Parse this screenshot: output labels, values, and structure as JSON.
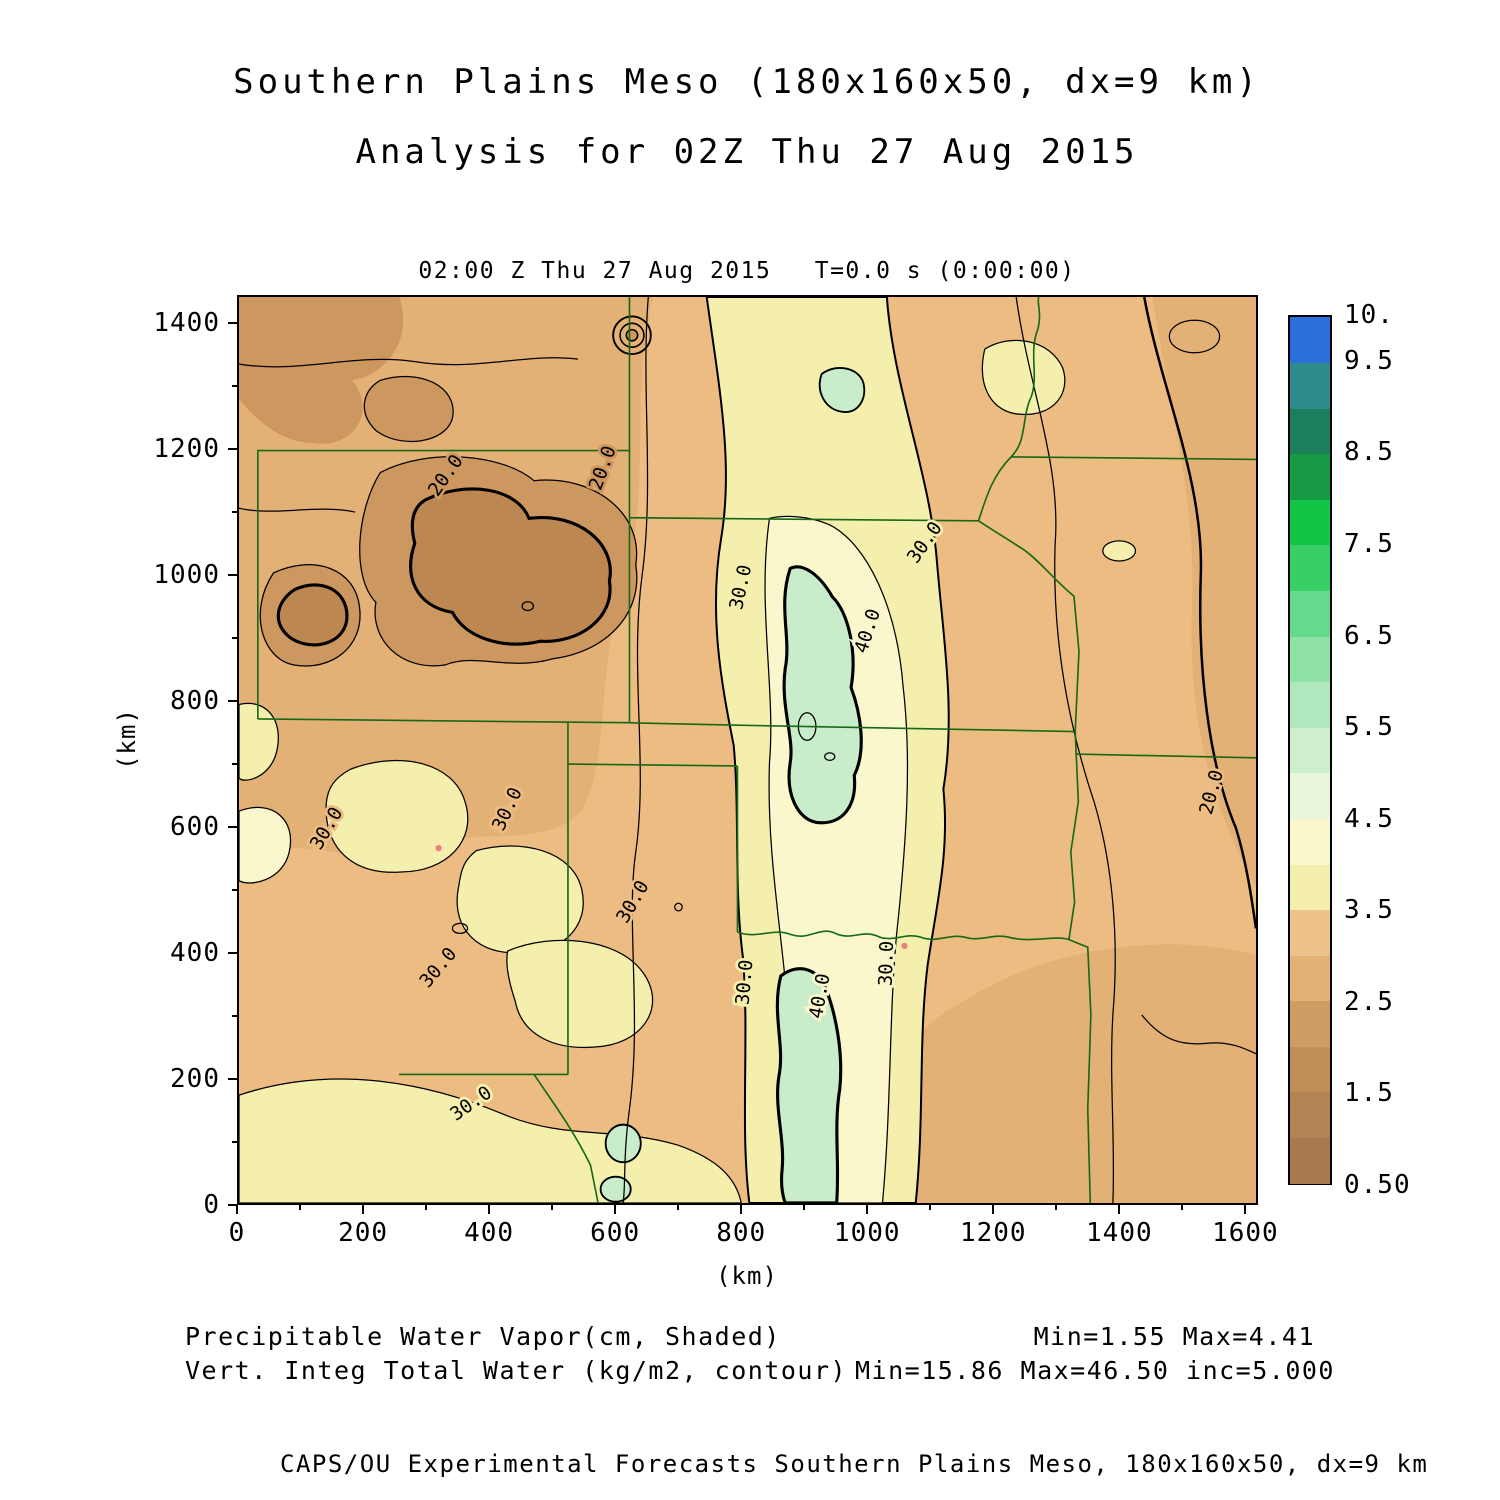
{
  "title": {
    "line1": "Southern Plains Meso (180x160x50, dx=9 km)",
    "line2": "Analysis for 02Z Thu 27 Aug 2015"
  },
  "plot_header": {
    "valid_time": "02:00 Z Thu 27 Aug 2015",
    "forecast_time": "T=0.0 s (0:00:00)"
  },
  "axes": {
    "x_label": "(km)",
    "y_label": "(km)"
  },
  "annotations": {
    "shaded_line": "Precipitable Water Vapor(cm, Shaded)",
    "contour_line": "Vert. Integ Total Water (kg/m2, contour)",
    "shaded_stats": "Min=1.55 Max=4.41",
    "contour_stats": "Min=15.86 Max=46.50 inc=5.000",
    "credit": "CAPS/OU Experimental Forecasts  Southern Plains Meso, 180x160x50, dx=9 km"
  },
  "colors": {
    "state_border": "#186818",
    "contour": "#000000",
    "shade_tan": "#ecbc82",
    "shade_deep_tan": "#e3b175",
    "shade_brown": "#cd9760",
    "shade_dark_brown": "#bd8752",
    "shade_yellow": "#f5efae",
    "shade_cream": "#faf7cd",
    "shade_mint": "#c9ecca"
  },
  "chart_data": {
    "type": "heatmap",
    "title": "Southern Plains Meso (180x160x50, dx=9 km) Analysis for 02Z Thu 27 Aug 2015",
    "subtitle": "02:00 Z Thu 27 Aug 2015  T=0.0 s (0:00:00)",
    "xlabel": "(km)",
    "ylabel": "(km)",
    "xlim": [
      0,
      1620
    ],
    "ylim": [
      0,
      1445
    ],
    "grid": false,
    "legend_position": "right-colorbar",
    "xticks": [
      0,
      200,
      400,
      600,
      800,
      1000,
      1200,
      1400,
      1600
    ],
    "yticks": [
      0,
      200,
      400,
      600,
      800,
      1000,
      1200,
      1400
    ],
    "map_overlay": "US state boundaries: CO, NE, KS, MO, IA, NM, TX, OK, AR",
    "shaded_field": {
      "name": "Precipitable Water Vapor",
      "units": "cm",
      "min": 1.55,
      "max": 4.41,
      "colorbar_range": [
        0.5,
        10
      ],
      "colorbar_labels": [
        {
          "label": "10.",
          "value": 10
        },
        {
          "label": "9.5",
          "value": 9.5
        },
        {
          "label": "8.5",
          "value": 8.5
        },
        {
          "label": "7.5",
          "value": 7.5
        },
        {
          "label": "6.5",
          "value": 6.5
        },
        {
          "label": "5.5",
          "value": 5.5
        },
        {
          "label": "4.5",
          "value": 4.5
        },
        {
          "label": "3.5",
          "value": 3.5
        },
        {
          "label": "2.5",
          "value": 2.5
        },
        {
          "label": "1.5",
          "value": 1.5
        },
        {
          "label": "0.50",
          "value": 0.5
        }
      ],
      "colorbar_colors_bottom_to_top": [
        "#a9784e",
        "#b48354",
        "#c08e58",
        "#cf9d64",
        "#e2b176",
        "#eec28b",
        "#f5efae",
        "#faf7cd",
        "#e9f6da",
        "#cdefcd",
        "#afe8bd",
        "#8ee1a7",
        "#65d98c",
        "#38d066",
        "#14c447",
        "#169a43",
        "#1b7f5c",
        "#2e8b8b",
        "#2b6fdd"
      ]
    },
    "contour_field": {
      "name": "Vert. Integ Total Water",
      "units": "kg/m2",
      "min": 15.86,
      "max": 46.5,
      "interval": 5.0,
      "labeled_levels": [
        20,
        30,
        40
      ]
    },
    "field_summary": "Dry brown region over Colorado (20 kg/m2 closed contours); moist pale-yellow/green N-S band through central Kansas-Oklahoma-Texas with 40 kg/m2 cores; drier tan air east and far west; 20 kg/m2 contour near east edge",
    "contour_labels": [
      {
        "text": "20.0",
        "x": 330,
        "y": 1160,
        "rot": -55,
        "halo": "#cd9760"
      },
      {
        "text": "20.0",
        "x": 580,
        "y": 1172,
        "rot": -70,
        "halo": "#cd9760"
      },
      {
        "text": "30.0",
        "x": 800,
        "y": 982,
        "rot": -78,
        "halo": "#f5efae"
      },
      {
        "text": "30.0",
        "x": 1093,
        "y": 1053,
        "rot": -55,
        "halo": "#f5efae"
      },
      {
        "text": "40.0",
        "x": 1002,
        "y": 912,
        "rot": -72,
        "halo": "#faf7cd"
      },
      {
        "text": "30.0",
        "x": 428,
        "y": 628,
        "rot": -65,
        "halo": "#ecbc82"
      },
      {
        "text": "30.0",
        "x": 140,
        "y": 597,
        "rot": -60,
        "halo": "#ecbc82"
      },
      {
        "text": "30.0",
        "x": 628,
        "y": 480,
        "rot": -60,
        "halo": "#ecbc82"
      },
      {
        "text": "30.0",
        "x": 318,
        "y": 375,
        "rot": -50,
        "halo": "#ecbc82"
      },
      {
        "text": "30.0",
        "x": 806,
        "y": 352,
        "rot": -85,
        "halo": "#f5efae"
      },
      {
        "text": "40.0",
        "x": 926,
        "y": 330,
        "rot": -80,
        "halo": "#faf7cd"
      },
      {
        "text": "30.0",
        "x": 1032,
        "y": 382,
        "rot": -88,
        "halo": "#faf7cd"
      },
      {
        "text": "30.0",
        "x": 370,
        "y": 158,
        "rot": -35,
        "halo": "#f5efae"
      },
      {
        "text": "20.0",
        "x": 1550,
        "y": 655,
        "rot": -75,
        "halo": "#ecbc82"
      }
    ]
  }
}
